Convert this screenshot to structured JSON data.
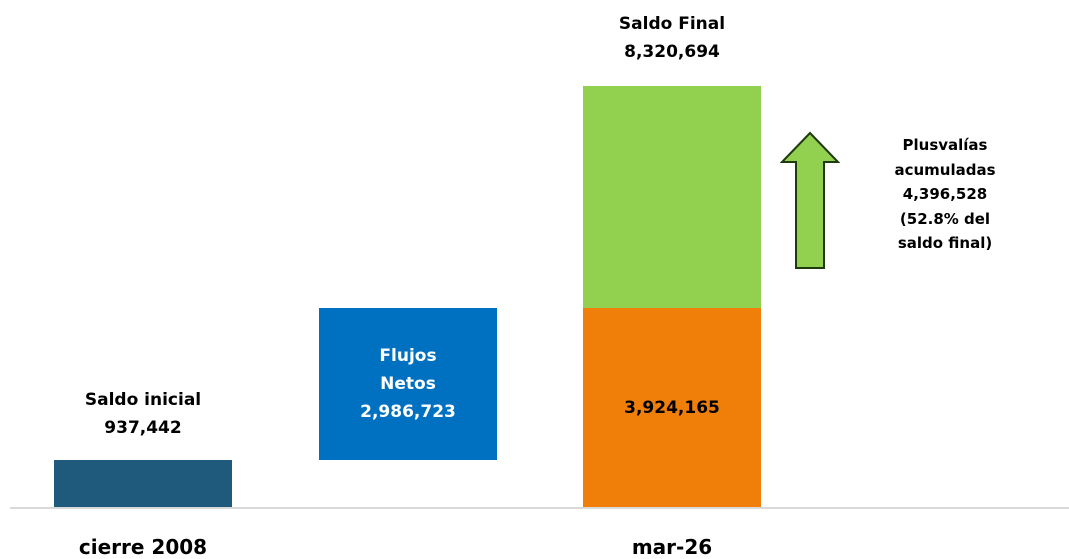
{
  "chart_data": {
    "type": "waterfall",
    "categories": [
      "cierre 2008",
      null,
      "mar-26"
    ],
    "series": [
      {
        "name": "Saldo inicial",
        "color": "#1f5a7c",
        "text_color": "#000000",
        "values": [
          937442,
          null,
          null
        ],
        "value_labels": [
          "937,442",
          null,
          null
        ]
      },
      {
        "name": "Flujos Netos",
        "color": "#0070c0",
        "text_color": "#ffffff",
        "values": [
          null,
          2986723,
          null
        ],
        "value_labels": [
          null,
          "2,986,723",
          null
        ]
      },
      {
        "color": "#f07f0a",
        "text_color": "#000000",
        "values": [
          null,
          null,
          3924165
        ],
        "value_labels": [
          null,
          null,
          "3,924,165"
        ]
      },
      {
        "name": "Plusvalías acumuladas",
        "color": "#92d050",
        "text_color": "#000000",
        "values": [
          null,
          null,
          4396528
        ],
        "value_labels": [
          null,
          null,
          "4,396,528"
        ],
        "annotation": "(52.8% del saldo final)"
      }
    ],
    "total": {
      "name": "Saldo Final",
      "value": 8320694,
      "label": "8,320,694"
    }
  }
}
